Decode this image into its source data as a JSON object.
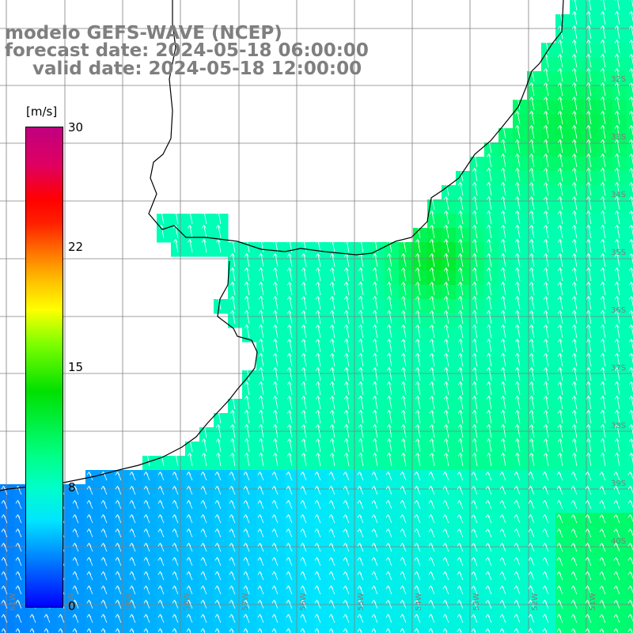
{
  "title": {
    "line1": "modelo GEFS-WAVE (NCEP)",
    "line2": "forecast date: 2024-05-18 06:00:00",
    "line3": "valid date: 2024-05-18 12:00:00"
  },
  "colorbar": {
    "unit": "[m/s]",
    "ticks": [
      "30",
      "22",
      "15",
      "8",
      "0"
    ],
    "tick_values": [
      30,
      22,
      15,
      8,
      0
    ],
    "range": [
      0,
      30
    ]
  },
  "grid": {
    "lat_labels": [
      "32S",
      "33S",
      "34S",
      "35S",
      "36S",
      "37S",
      "38S",
      "39S",
      "40S"
    ],
    "lon_labels": [
      "61W",
      "60W",
      "59W",
      "58W",
      "57W",
      "56W",
      "55W",
      "54W",
      "53W",
      "52W",
      "51W"
    ]
  },
  "map_data": {
    "lon_range": [
      "61W",
      "50W"
    ],
    "lat_range": [
      "31S",
      "41S"
    ],
    "field": "wind speed",
    "arrow_direction": "from south to north"
  }
}
